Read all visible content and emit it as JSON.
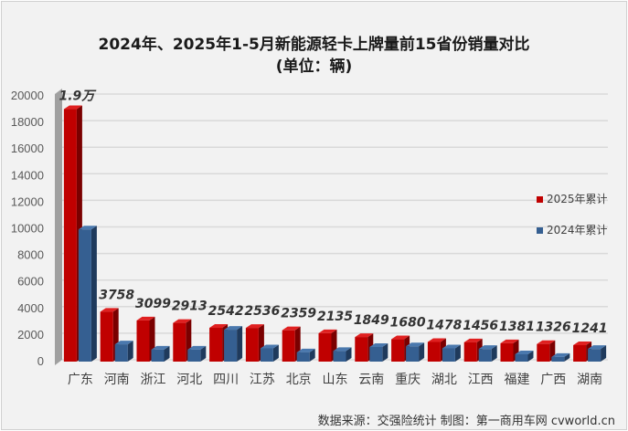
{
  "chart_data": {
    "type": "bar",
    "title": "2024年、2025年1-5月新能源轻卡上牌量前15省份销量对比",
    "subtitle": "(单位：辆)",
    "categories": [
      "广东",
      "河南",
      "浙江",
      "河北",
      "四川",
      "江苏",
      "北京",
      "山东",
      "云南",
      "重庆",
      "湖北",
      "江西",
      "福建",
      "广西",
      "湖南"
    ],
    "series": [
      {
        "name": "2025年累计",
        "color": "#c00000",
        "values": [
          19000,
          3758,
          3099,
          2913,
          2542,
          2536,
          2359,
          2135,
          1849,
          1680,
          1478,
          1456,
          1381,
          1326,
          1241
        ],
        "labels": [
          "1.9万",
          "3758",
          "3099",
          "2913",
          "2542",
          "2536",
          "2359",
          "2135",
          "1849",
          "1680",
          "1478",
          "1456",
          "1381",
          "1326",
          "1241"
        ]
      },
      {
        "name": "2024年累计",
        "color": "#355f91",
        "values": [
          9950,
          1300,
          900,
          900,
          2400,
          1000,
          700,
          800,
          1100,
          1150,
          1000,
          950,
          550,
          350,
          950
        ]
      }
    ],
    "ylim": [
      0,
      20000
    ],
    "yticks": [
      0,
      2000,
      4000,
      6000,
      8000,
      10000,
      12000,
      14000,
      16000,
      18000,
      20000
    ],
    "grid": true,
    "legend": "right",
    "source": "数据来源：交强险统计 制图：第一商用车网 cvworld.cn"
  }
}
